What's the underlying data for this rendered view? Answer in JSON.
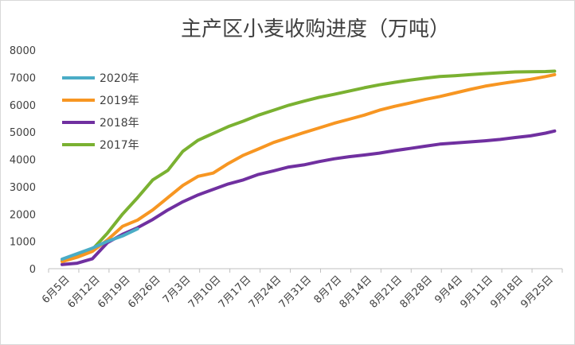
{
  "chart_data": {
    "type": "line",
    "title": "主产区小麦收购进度（万吨）",
    "x": [
      "6月5日",
      "6月12日",
      "6月19日",
      "6月26日",
      "7月3日",
      "7月10日",
      "7月17日",
      "7月24日",
      "7月31日",
      "8月7日",
      "8月14日",
      "8月21日",
      "8月28日",
      "9月4日",
      "9月11日",
      "9月18日",
      "9月25日"
    ],
    "ylim": [
      0,
      8000
    ],
    "yticks": [
      0,
      1000,
      2000,
      3000,
      4000,
      5000,
      6000,
      7000,
      8000
    ],
    "grid": false,
    "legend": "top-left",
    "series": [
      {
        "name": "2020年",
        "color": "#4aacc6",
        "points": [
          [
            0,
            350
          ],
          [
            0.5,
            550
          ],
          [
            1,
            750
          ],
          [
            1.5,
            1000
          ],
          [
            2,
            1200
          ],
          [
            2.5,
            1460
          ]
        ]
      },
      {
        "name": "2019年",
        "color": "#f79622",
        "points": [
          [
            0,
            260
          ],
          [
            0.5,
            420
          ],
          [
            1,
            630
          ],
          [
            1.5,
            1050
          ],
          [
            2,
            1550
          ],
          [
            2.5,
            1780
          ],
          [
            3,
            2150
          ],
          [
            3.5,
            2600
          ],
          [
            4,
            3050
          ],
          [
            4.5,
            3380
          ],
          [
            5,
            3500
          ],
          [
            5.5,
            3850
          ],
          [
            6,
            4150
          ],
          [
            6.5,
            4380
          ],
          [
            7,
            4620
          ],
          [
            7.5,
            4800
          ],
          [
            8,
            4980
          ],
          [
            8.5,
            5150
          ],
          [
            9,
            5320
          ],
          [
            9.5,
            5470
          ],
          [
            10,
            5620
          ],
          [
            10.5,
            5800
          ],
          [
            11,
            5940
          ],
          [
            11.5,
            6060
          ],
          [
            12,
            6190
          ],
          [
            12.5,
            6300
          ],
          [
            13,
            6430
          ],
          [
            13.5,
            6560
          ],
          [
            14,
            6680
          ],
          [
            14.5,
            6770
          ],
          [
            15,
            6850
          ],
          [
            15.5,
            6930
          ],
          [
            16,
            7030
          ],
          [
            16.3,
            7100
          ]
        ]
      },
      {
        "name": "2018年",
        "color": "#7030a0",
        "points": [
          [
            0,
            150
          ],
          [
            0.5,
            200
          ],
          [
            1,
            360
          ],
          [
            1.5,
            950
          ],
          [
            2,
            1260
          ],
          [
            2.5,
            1500
          ],
          [
            3,
            1800
          ],
          [
            3.5,
            2150
          ],
          [
            4,
            2450
          ],
          [
            4.5,
            2700
          ],
          [
            5,
            2900
          ],
          [
            5.5,
            3100
          ],
          [
            6,
            3250
          ],
          [
            6.5,
            3450
          ],
          [
            7,
            3580
          ],
          [
            7.5,
            3720
          ],
          [
            8,
            3800
          ],
          [
            8.5,
            3920
          ],
          [
            9,
            4020
          ],
          [
            9.5,
            4100
          ],
          [
            10,
            4160
          ],
          [
            10.5,
            4230
          ],
          [
            11,
            4320
          ],
          [
            11.5,
            4400
          ],
          [
            12,
            4480
          ],
          [
            12.5,
            4560
          ],
          [
            13,
            4600
          ],
          [
            13.5,
            4640
          ],
          [
            14,
            4680
          ],
          [
            14.5,
            4730
          ],
          [
            15,
            4800
          ],
          [
            15.5,
            4860
          ],
          [
            16,
            4960
          ],
          [
            16.3,
            5040
          ]
        ]
      },
      {
        "name": "2017年",
        "color": "#7ab131",
        "points": [
          [
            0,
            280
          ],
          [
            0.5,
            500
          ],
          [
            1,
            700
          ],
          [
            1.5,
            1300
          ],
          [
            2,
            2000
          ],
          [
            2.5,
            2600
          ],
          [
            3,
            3250
          ],
          [
            3.5,
            3600
          ],
          [
            4,
            4300
          ],
          [
            4.5,
            4700
          ],
          [
            5,
            4950
          ],
          [
            5.5,
            5200
          ],
          [
            6,
            5400
          ],
          [
            6.5,
            5620
          ],
          [
            7,
            5800
          ],
          [
            7.5,
            5980
          ],
          [
            8,
            6130
          ],
          [
            8.5,
            6270
          ],
          [
            9,
            6380
          ],
          [
            9.5,
            6500
          ],
          [
            10,
            6620
          ],
          [
            10.5,
            6730
          ],
          [
            11,
            6820
          ],
          [
            11.5,
            6900
          ],
          [
            12,
            6970
          ],
          [
            12.5,
            7030
          ],
          [
            13,
            7060
          ],
          [
            13.5,
            7100
          ],
          [
            14,
            7140
          ],
          [
            14.5,
            7170
          ],
          [
            15,
            7200
          ],
          [
            15.5,
            7210
          ],
          [
            16,
            7215
          ],
          [
            16.3,
            7230
          ]
        ]
      }
    ]
  }
}
